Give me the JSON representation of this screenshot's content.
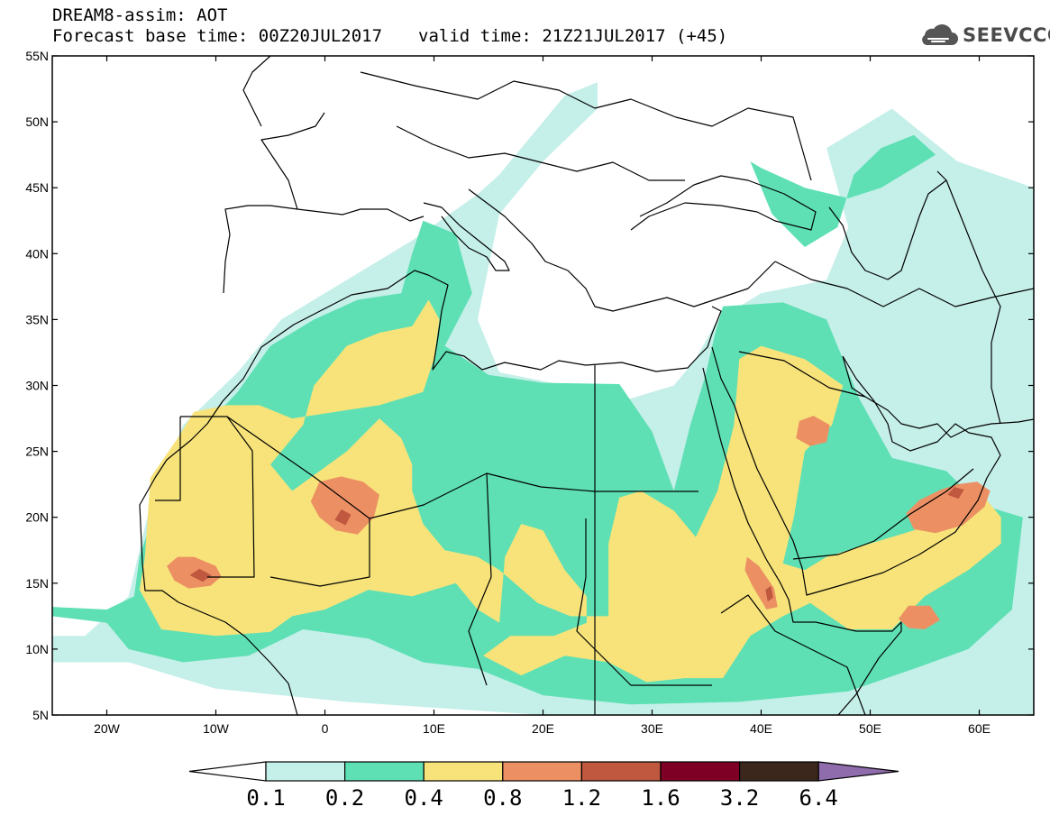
{
  "header": {
    "title": "DREAM8-assim: AOT",
    "base_time": "Forecast base time: 00Z20JUL2017",
    "valid_time": "valid time: 21Z21JUL2017 (+45)"
  },
  "logo": {
    "text": "SEEVCCC",
    "icon": "cloud-icon"
  },
  "map": {
    "lon_range": [
      -25,
      65
    ],
    "lat_range": [
      5,
      55
    ],
    "lat_ticks": [
      {
        "value": 55,
        "label": "55N"
      },
      {
        "value": 50,
        "label": "50N"
      },
      {
        "value": 45,
        "label": "45N"
      },
      {
        "value": 40,
        "label": "40N"
      },
      {
        "value": 35,
        "label": "35N"
      },
      {
        "value": 30,
        "label": "30N"
      },
      {
        "value": 25,
        "label": "25N"
      },
      {
        "value": 20,
        "label": "20N"
      },
      {
        "value": 15,
        "label": "15N"
      },
      {
        "value": 10,
        "label": "10N"
      },
      {
        "value": 5,
        "label": "5N"
      }
    ],
    "lon_ticks": [
      {
        "value": -20,
        "label": "20W"
      },
      {
        "value": -10,
        "label": "10W"
      },
      {
        "value": 0,
        "label": "0"
      },
      {
        "value": 10,
        "label": "10E"
      },
      {
        "value": 20,
        "label": "20E"
      },
      {
        "value": 30,
        "label": "30E"
      },
      {
        "value": 40,
        "label": "40E"
      },
      {
        "value": 50,
        "label": "50E"
      },
      {
        "value": 60,
        "label": "60E"
      }
    ],
    "dust_regions": [
      {
        "level": 0,
        "pts": [
          [
            -25,
            11
          ],
          [
            -22,
            11
          ],
          [
            -18,
            14
          ],
          [
            -16,
            21
          ],
          [
            -13,
            27
          ],
          [
            -8,
            31
          ],
          [
            -4,
            35
          ],
          [
            2,
            38
          ],
          [
            8,
            41
          ],
          [
            14,
            44.5
          ],
          [
            16,
            46
          ],
          [
            19,
            49
          ],
          [
            22,
            52
          ],
          [
            25,
            53
          ],
          [
            25,
            51
          ],
          [
            20,
            47
          ],
          [
            16,
            43
          ],
          [
            15,
            39
          ],
          [
            14,
            35
          ],
          [
            16,
            31
          ],
          [
            22,
            30
          ],
          [
            28,
            29
          ],
          [
            32,
            30
          ],
          [
            34,
            32
          ],
          [
            36,
            35
          ],
          [
            40,
            37
          ],
          [
            46,
            38
          ],
          [
            48,
            42
          ],
          [
            46,
            48
          ],
          [
            52,
            51
          ],
          [
            58,
            47
          ],
          [
            65,
            45
          ],
          [
            65,
            5
          ],
          [
            40,
            5
          ],
          [
            20,
            5
          ],
          [
            2,
            6
          ],
          [
            -10,
            7
          ],
          [
            -18,
            9
          ],
          [
            -25,
            9
          ]
        ]
      },
      {
        "level": 1,
        "pts": [
          [
            -25,
            13.2
          ],
          [
            -20,
            13
          ],
          [
            -17.5,
            14
          ],
          [
            -17,
            17
          ],
          [
            -15,
            22
          ],
          [
            -12,
            26
          ],
          [
            -8,
            29.5
          ],
          [
            -5,
            33
          ],
          [
            -1,
            35
          ],
          [
            3,
            36.5
          ],
          [
            7,
            37
          ],
          [
            8,
            40
          ],
          [
            9,
            42.5
          ],
          [
            12,
            41.5
          ],
          [
            13.5,
            37
          ],
          [
            11,
            33
          ],
          [
            15,
            30.8
          ],
          [
            20,
            30.2
          ],
          [
            27,
            30.1
          ],
          [
            30,
            26.5
          ],
          [
            32,
            22
          ],
          [
            33.5,
            27
          ],
          [
            34.8,
            30.5
          ],
          [
            35.8,
            34
          ],
          [
            36.5,
            36
          ],
          [
            42,
            36.3
          ],
          [
            46,
            35
          ],
          [
            49,
            29
          ],
          [
            52,
            24.5
          ],
          [
            57,
            23.5
          ],
          [
            60,
            21
          ],
          [
            64,
            20
          ],
          [
            63,
            13
          ],
          [
            59,
            10
          ],
          [
            54,
            8.5
          ],
          [
            48,
            6.8
          ],
          [
            38,
            6
          ],
          [
            28,
            5.8
          ],
          [
            20,
            6.5
          ],
          [
            14,
            8.5
          ],
          [
            9,
            9
          ],
          [
            4,
            10.8
          ],
          [
            -2,
            11.5
          ],
          [
            -7,
            9.5
          ],
          [
            -13,
            9
          ],
          [
            -18,
            10
          ],
          [
            -20,
            12
          ],
          [
            -25,
            12.5
          ]
        ]
      },
      {
        "level": 1,
        "pts": [
          [
            39,
            47
          ],
          [
            41,
            43
          ],
          [
            44,
            40.5
          ],
          [
            47,
            42
          ],
          [
            48.5,
            46
          ],
          [
            51,
            48
          ],
          [
            54,
            49
          ],
          [
            56,
            47.5
          ],
          [
            51,
            45
          ],
          [
            48,
            44.2
          ],
          [
            44,
            45
          ],
          [
            40,
            46.5
          ]
        ]
      },
      {
        "level": 2,
        "pts": [
          [
            -16,
            23
          ],
          [
            -16.5,
            17
          ],
          [
            -17,
            14.5
          ],
          [
            -15,
            11.5
          ],
          [
            -10,
            11
          ],
          [
            -5,
            11.3
          ],
          [
            -3,
            12.5
          ],
          [
            0,
            13
          ],
          [
            4,
            14.5
          ],
          [
            8,
            14
          ],
          [
            12,
            15
          ],
          [
            14,
            13
          ],
          [
            16,
            12
          ],
          [
            16.5,
            17
          ],
          [
            18,
            19.5
          ],
          [
            20,
            19
          ],
          [
            22,
            16
          ],
          [
            24,
            14
          ],
          [
            24,
            12
          ],
          [
            21,
            11
          ],
          [
            17,
            11
          ],
          [
            14.5,
            9.5
          ],
          [
            18,
            8
          ],
          [
            22,
            9.5
          ],
          [
            26,
            9
          ],
          [
            29.5,
            7.5
          ],
          [
            33,
            7.8
          ],
          [
            36.5,
            7.8
          ],
          [
            39,
            11
          ],
          [
            42,
            12.5
          ],
          [
            44.5,
            13.5
          ],
          [
            48,
            11.5
          ],
          [
            52,
            11.5
          ],
          [
            55,
            14
          ],
          [
            59,
            16
          ],
          [
            62,
            18
          ],
          [
            62,
            20
          ],
          [
            60,
            22
          ],
          [
            57,
            21
          ],
          [
            54,
            19
          ],
          [
            50,
            18
          ],
          [
            46,
            17
          ],
          [
            44,
            16
          ],
          [
            42,
            16.5
          ],
          [
            43,
            20
          ],
          [
            44,
            25
          ],
          [
            46.5,
            27
          ],
          [
            47.5,
            30
          ],
          [
            44,
            32
          ],
          [
            40,
            33
          ],
          [
            38,
            32
          ],
          [
            37.5,
            27
          ],
          [
            36,
            22
          ],
          [
            34,
            18.5
          ],
          [
            32,
            20.5
          ],
          [
            29,
            22
          ],
          [
            27,
            21.5
          ],
          [
            26,
            18
          ],
          [
            26,
            12.5
          ],
          [
            22.5,
            12.5
          ],
          [
            19.5,
            13.5
          ],
          [
            16,
            16
          ],
          [
            14,
            17
          ],
          [
            11,
            17.5
          ],
          [
            9,
            19.5
          ],
          [
            8,
            22
          ],
          [
            8,
            24
          ],
          [
            7,
            26
          ],
          [
            5,
            27.5
          ],
          [
            2,
            25
          ],
          [
            -3,
            22
          ],
          [
            -5,
            24
          ],
          [
            -2,
            27
          ],
          [
            -1,
            30
          ],
          [
            2,
            33
          ],
          [
            5,
            34
          ],
          [
            8,
            34.5
          ],
          [
            9.5,
            36.5
          ],
          [
            10.5,
            35
          ],
          [
            10,
            32
          ],
          [
            9,
            29.5
          ],
          [
            5,
            28.5
          ],
          [
            1,
            28
          ],
          [
            -3,
            27.5
          ],
          [
            -6,
            28.5
          ],
          [
            -9,
            28.5
          ],
          [
            -12,
            28
          ],
          [
            -13.5,
            26
          ]
        ]
      },
      {
        "level": 3,
        "pts": [
          [
            -14.5,
            16.3
          ],
          [
            -13.5,
            17
          ],
          [
            -12,
            17
          ],
          [
            -10,
            16.3
          ],
          [
            -9.5,
            15.5
          ],
          [
            -10.5,
            14.8
          ],
          [
            -12.5,
            14.6
          ],
          [
            -13.8,
            15.2
          ]
        ]
      },
      {
        "level": 3,
        "pts": [
          [
            -1.3,
            21.2
          ],
          [
            -0.5,
            22.7
          ],
          [
            1.5,
            23.1
          ],
          [
            3.5,
            22.7
          ],
          [
            5,
            21.7
          ],
          [
            4.5,
            20
          ],
          [
            3,
            18.7
          ],
          [
            1,
            19
          ],
          [
            -0.5,
            20
          ]
        ]
      },
      {
        "level": 3,
        "pts": [
          [
            53.3,
            20.3
          ],
          [
            54.5,
            21.3
          ],
          [
            56.5,
            22.1
          ],
          [
            58,
            22.5
          ],
          [
            59.8,
            22.7
          ],
          [
            61,
            22
          ],
          [
            60.5,
            20.8
          ],
          [
            58.5,
            19.4
          ],
          [
            56,
            18.8
          ],
          [
            54,
            19.1
          ]
        ]
      },
      {
        "level": 3,
        "pts": [
          [
            43.2,
            26
          ],
          [
            43.5,
            27.3
          ],
          [
            44.8,
            27.7
          ],
          [
            46.3,
            27
          ],
          [
            46,
            25.7
          ],
          [
            44.5,
            25.4
          ]
        ]
      },
      {
        "level": 3,
        "pts": [
          [
            52.6,
            12.3
          ],
          [
            53.5,
            13.3
          ],
          [
            55.5,
            13.3
          ],
          [
            56.4,
            12.2
          ],
          [
            55,
            11.5
          ],
          [
            53.5,
            11.6
          ]
        ]
      },
      {
        "level": 3,
        "pts": [
          [
            38.7,
            17
          ],
          [
            39.8,
            16.3
          ],
          [
            41.2,
            14.6
          ],
          [
            41.5,
            13.2
          ],
          [
            40.5,
            13
          ],
          [
            39.2,
            14.8
          ],
          [
            38.5,
            16
          ]
        ]
      },
      {
        "level": 4,
        "pts": [
          [
            -12.4,
            15.6
          ],
          [
            -11.5,
            16.1
          ],
          [
            -10.4,
            15.6
          ],
          [
            -11.2,
            15.1
          ]
        ]
      },
      {
        "level": 4,
        "pts": [
          [
            0.9,
            19.8
          ],
          [
            1.5,
            20.6
          ],
          [
            2.4,
            20.2
          ],
          [
            1.9,
            19.4
          ]
        ]
      },
      {
        "level": 4,
        "pts": [
          [
            57.1,
            21.7
          ],
          [
            57.7,
            22.3
          ],
          [
            58.6,
            22.1
          ],
          [
            58.1,
            21.4
          ]
        ]
      },
      {
        "level": 4,
        "pts": [
          [
            40.4,
            14.5
          ],
          [
            40.9,
            14.8
          ],
          [
            41.1,
            13.9
          ],
          [
            40.6,
            13.6
          ]
        ]
      }
    ]
  },
  "colorbar": {
    "labels": [
      "0.1",
      "0.2",
      "0.4",
      "0.8",
      "1.2",
      "1.6",
      "3.2",
      "6.4"
    ],
    "colors": [
      "#ffffff",
      "#c5efe9",
      "#5ee0b4",
      "#f7e37a",
      "#ec9064",
      "#c0573f",
      "#7e0025",
      "#3b271b",
      "#8f6cab"
    ]
  }
}
